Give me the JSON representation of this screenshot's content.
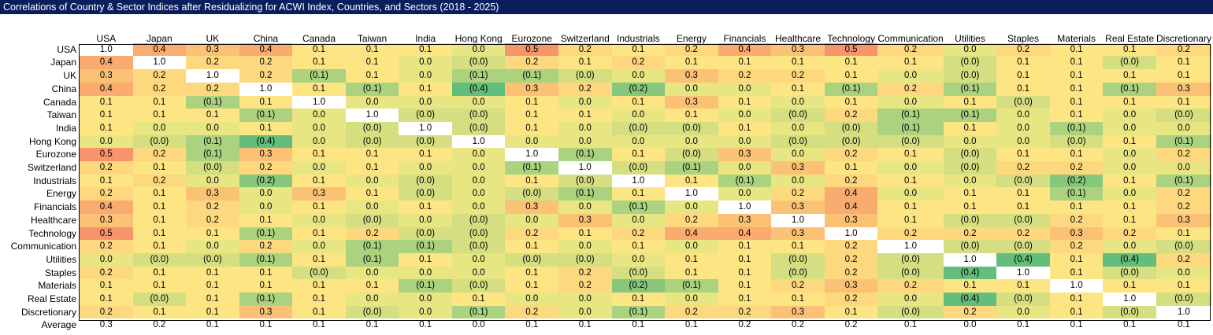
{
  "title": "Correlations of Country & Sector Indices after Residualizing for ACWI Index, Countries, and Sectors (2018 - 2025)",
  "titlebar_color": "#0A1E5E",
  "chart_data": {
    "type": "heatmap",
    "title": "Correlations of Country & Sector Indices after Residualizing for ACWI Index, Countries, and Sectors (2018 - 2025)",
    "negative_format": "parentheses",
    "labels": [
      "USA",
      "Japan",
      "UK",
      "China",
      "Canada",
      "Taiwan",
      "India",
      "Hong Kong",
      "Eurozone",
      "Switzerland",
      "Industrials",
      "Energy",
      "Financials",
      "Healthcare",
      "Technology",
      "Communication",
      "Utilities",
      "Staples",
      "Materials",
      "Real Estate",
      "Discretionary"
    ],
    "matrix": [
      [
        "1.0",
        "0.4",
        "0.3",
        "0.4",
        "0.1",
        "0.1",
        "0.1",
        "0.0",
        "0.5",
        "0.2",
        "0.1",
        "0.2",
        "0.4",
        "0.3",
        "0.5",
        "0.2",
        "0.0",
        "0.2",
        "0.1",
        "0.1",
        "0.2"
      ],
      [
        "0.4",
        "1.0",
        "0.2",
        "0.2",
        "0.1",
        "0.1",
        "0.0",
        "(0.0)",
        "0.2",
        "0.1",
        "0.2",
        "0.1",
        "0.1",
        "0.1",
        "0.1",
        "0.1",
        "(0.0)",
        "0.1",
        "0.1",
        "(0.0)",
        "0.1"
      ],
      [
        "0.3",
        "0.2",
        "1.0",
        "0.2",
        "(0.1)",
        "0.1",
        "0.0",
        "(0.1)",
        "(0.1)",
        "(0.0)",
        "0.0",
        "0.3",
        "0.2",
        "0.2",
        "0.1",
        "0.0",
        "(0.0)",
        "0.1",
        "0.1",
        "0.1",
        "0.1"
      ],
      [
        "0.4",
        "0.2",
        "0.2",
        "1.0",
        "0.1",
        "(0.1)",
        "0.1",
        "(0.4)",
        "0.3",
        "0.2",
        "(0.2)",
        "0.0",
        "0.0",
        "0.1",
        "(0.1)",
        "0.2",
        "(0.1)",
        "0.1",
        "0.1",
        "(0.1)",
        "0.3"
      ],
      [
        "0.1",
        "0.1",
        "(0.1)",
        "0.1",
        "1.0",
        "0.0",
        "0.0",
        "0.0",
        "0.1",
        "0.0",
        "0.1",
        "0.3",
        "0.1",
        "0.0",
        "0.1",
        "0.0",
        "0.1",
        "(0.0)",
        "0.1",
        "0.1",
        "0.1"
      ],
      [
        "0.1",
        "0.1",
        "0.1",
        "(0.1)",
        "0.0",
        "1.0",
        "(0.0)",
        "(0.0)",
        "0.1",
        "0.1",
        "0.0",
        "0.1",
        "0.0",
        "(0.0)",
        "0.2",
        "(0.1)",
        "(0.1)",
        "0.0",
        "0.1",
        "0.0",
        "(0.0)"
      ],
      [
        "0.1",
        "0.0",
        "0.0",
        "0.1",
        "0.0",
        "(0.0)",
        "1.0",
        "(0.0)",
        "0.1",
        "0.0",
        "(0.0)",
        "(0.0)",
        "0.1",
        "0.0",
        "(0.0)",
        "(0.1)",
        "0.1",
        "0.0",
        "(0.1)",
        "0.0",
        "0.0"
      ],
      [
        "0.0",
        "(0.0)",
        "(0.1)",
        "(0.4)",
        "0.0",
        "(0.0)",
        "(0.0)",
        "1.0",
        "0.0",
        "0.0",
        "0.0",
        "0.0",
        "0.0",
        "(0.0)",
        "(0.0)",
        "(0.0)",
        "0.0",
        "0.0",
        "(0.0)",
        "0.1",
        "(0.1)"
      ],
      [
        "0.5",
        "0.2",
        "(0.1)",
        "0.3",
        "0.1",
        "0.1",
        "0.1",
        "0.0",
        "1.0",
        "(0.1)",
        "0.1",
        "(0.0)",
        "0.3",
        "0.0",
        "0.2",
        "0.1",
        "(0.0)",
        "0.1",
        "0.1",
        "0.0",
        "0.2"
      ],
      [
        "0.2",
        "0.1",
        "(0.0)",
        "0.2",
        "0.0",
        "0.1",
        "0.0",
        "0.0",
        "(0.1)",
        "1.0",
        "(0.0)",
        "(0.1)",
        "0.0",
        "0.3",
        "0.1",
        "0.0",
        "(0.0)",
        "0.2",
        "0.2",
        "0.0",
        "0.0"
      ],
      [
        "0.1",
        "0.2",
        "0.0",
        "(0.2)",
        "0.1",
        "0.0",
        "(0.0)",
        "0.0",
        "0.1",
        "(0.0)",
        "1.0",
        "0.1",
        "(0.1)",
        "0.0",
        "0.2",
        "0.1",
        "0.0",
        "(0.0)",
        "(0.2)",
        "0.1",
        "(0.1)"
      ],
      [
        "0.2",
        "0.1",
        "0.3",
        "0.0",
        "0.3",
        "0.1",
        "(0.0)",
        "0.0",
        "(0.0)",
        "(0.1)",
        "0.1",
        "1.0",
        "0.0",
        "0.2",
        "0.4",
        "0.0",
        "0.1",
        "0.1",
        "(0.1)",
        "0.0",
        "0.2"
      ],
      [
        "0.4",
        "0.1",
        "0.2",
        "0.0",
        "0.1",
        "0.0",
        "0.1",
        "0.0",
        "0.3",
        "0.0",
        "(0.1)",
        "0.0",
        "1.0",
        "0.3",
        "0.4",
        "0.1",
        "0.1",
        "0.1",
        "0.1",
        "0.1",
        "0.2"
      ],
      [
        "0.3",
        "0.1",
        "0.2",
        "0.1",
        "0.0",
        "(0.0)",
        "0.0",
        "(0.0)",
        "0.0",
        "0.3",
        "0.0",
        "0.2",
        "0.3",
        "1.0",
        "0.3",
        "0.1",
        "(0.0)",
        "(0.0)",
        "0.2",
        "0.1",
        "0.3"
      ],
      [
        "0.5",
        "0.1",
        "0.1",
        "(0.1)",
        "0.1",
        "0.2",
        "(0.0)",
        "(0.0)",
        "0.2",
        "0.1",
        "0.2",
        "0.4",
        "0.4",
        "0.3",
        "1.0",
        "0.2",
        "0.2",
        "0.2",
        "0.3",
        "0.2",
        "0.1"
      ],
      [
        "0.2",
        "0.1",
        "0.0",
        "0.2",
        "0.0",
        "(0.1)",
        "(0.1)",
        "(0.0)",
        "0.1",
        "0.0",
        "0.1",
        "0.0",
        "0.1",
        "0.1",
        "0.2",
        "1.0",
        "(0.0)",
        "(0.0)",
        "0.2",
        "0.0",
        "(0.0)"
      ],
      [
        "0.0",
        "(0.0)",
        "(0.0)",
        "(0.1)",
        "0.1",
        "(0.1)",
        "0.1",
        "0.0",
        "(0.0)",
        "(0.0)",
        "0.0",
        "0.1",
        "0.1",
        "(0.0)",
        "0.2",
        "(0.0)",
        "1.0",
        "(0.4)",
        "0.1",
        "(0.4)",
        "0.2"
      ],
      [
        "0.2",
        "0.1",
        "0.1",
        "0.1",
        "(0.0)",
        "0.0",
        "0.0",
        "0.0",
        "0.1",
        "0.2",
        "(0.0)",
        "0.1",
        "0.1",
        "(0.0)",
        "0.2",
        "(0.0)",
        "(0.4)",
        "1.0",
        "0.1",
        "(0.0)",
        "0.0"
      ],
      [
        "0.1",
        "0.1",
        "0.1",
        "0.1",
        "0.1",
        "0.1",
        "(0.1)",
        "(0.0)",
        "0.1",
        "0.2",
        "(0.2)",
        "(0.1)",
        "0.1",
        "0.2",
        "0.3",
        "0.2",
        "0.1",
        "0.1",
        "1.0",
        "0.1",
        "0.1"
      ],
      [
        "0.1",
        "(0.0)",
        "0.1",
        "(0.1)",
        "0.1",
        "0.0",
        "0.0",
        "0.1",
        "0.0",
        "0.0",
        "0.1",
        "0.0",
        "0.1",
        "0.1",
        "0.2",
        "0.0",
        "(0.4)",
        "(0.0)",
        "0.1",
        "1.0",
        "(0.0)"
      ],
      [
        "0.2",
        "0.1",
        "0.1",
        "0.3",
        "0.1",
        "(0.0)",
        "0.0",
        "(0.1)",
        "0.2",
        "0.0",
        "(0.1)",
        "0.2",
        "0.2",
        "0.3",
        "0.1",
        "(0.0)",
        "0.2",
        "0.0",
        "0.1",
        "(0.0)",
        "1.0"
      ]
    ],
    "average_label": "Average",
    "average": [
      "0.3",
      "0.2",
      "0.1",
      "0.1",
      "0.1",
      "0.1",
      "0.1",
      "0.0",
      "0.1",
      "0.1",
      "0.1",
      "0.1",
      "0.2",
      "0.2",
      "0.2",
      "0.1",
      "0.0",
      "0.1",
      "0.1",
      "0.1",
      "0.1"
    ],
    "color_scale": {
      "1.0": "#FFFFFF",
      "0.5": "#F8946C",
      "0.4": "#FAAB6F",
      "0.3": "#FBC276",
      "0.2": "#FDD87E",
      "0.1": "#FEE583",
      "0.0": "#E8E583",
      "(0.0)": "#D5DF81",
      "(0.1)": "#ABD27F",
      "(0.2)": "#86C77C",
      "(0.4)": "#63BE7B"
    }
  }
}
